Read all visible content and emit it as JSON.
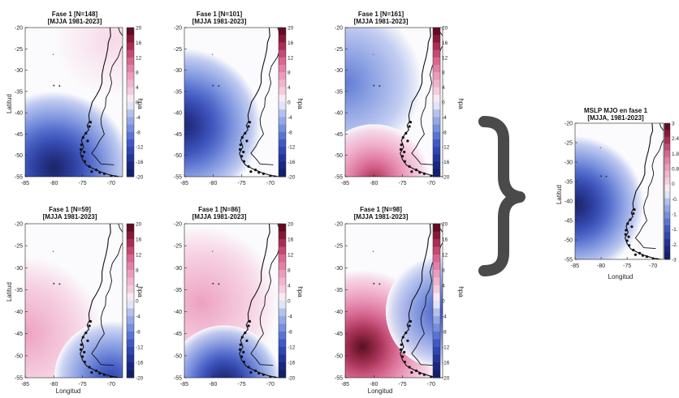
{
  "chart_data": [
    {
      "type": "heatmap",
      "title": "Fase 1 [N=148]",
      "subtitle": "[MJJA 1981-2023]",
      "xlabel": "",
      "ylabel": "Latitud",
      "colorbar_label": "hpa",
      "xlim": [
        -85,
        -68
      ],
      "ylim": [
        -55,
        -20
      ],
      "xticks": [
        "-85",
        "-80",
        "-75",
        "-70"
      ],
      "yticks": [
        "-20",
        "-25",
        "-30",
        "-35",
        "-40",
        "-45",
        "-50",
        "-55"
      ],
      "cbar_ticks": [
        "20",
        "16",
        "12",
        "8",
        "4",
        "0",
        "-4",
        "-8",
        "-12",
        "-16",
        "-20"
      ],
      "clim": [
        -20,
        20
      ],
      "anomaly_centers": [
        {
          "lon": -80,
          "lat": -53,
          "value": -20
        },
        {
          "lon": -70,
          "lat": -23,
          "value": 2
        }
      ]
    },
    {
      "type": "heatmap",
      "title": "Fase 1 [N=101]",
      "subtitle": "[MJJA 1981-2023]",
      "xlabel": "",
      "ylabel": "",
      "colorbar_label": "hpa",
      "xlim": [
        -85,
        -68
      ],
      "ylim": [
        -55,
        -20
      ],
      "xticks": [
        "-85",
        "-80",
        "-75",
        "-70"
      ],
      "yticks": [
        "-20",
        "-25",
        "-30",
        "-35",
        "-40",
        "-45",
        "-50",
        "-55"
      ],
      "cbar_ticks": [
        "20",
        "16",
        "12",
        "8",
        "4",
        "0",
        "-4",
        "-8",
        "-12",
        "-16",
        "-20"
      ],
      "clim": [
        -20,
        20
      ],
      "anomaly_centers": [
        {
          "lon": -85,
          "lat": -43,
          "value": -19
        }
      ]
    },
    {
      "type": "heatmap",
      "title": "Fase 1 [N=161]",
      "subtitle": "[MJJA 1981-2023]",
      "xlabel": "",
      "ylabel": "",
      "colorbar_label": "hpa",
      "xlim": [
        -85,
        -68
      ],
      "ylim": [
        -55,
        -20
      ],
      "xticks": [
        "-85",
        "-80",
        "-75",
        "-70"
      ],
      "yticks": [
        "-20",
        "-25",
        "-30",
        "-35",
        "-40",
        "-45",
        "-50",
        "-55"
      ],
      "cbar_ticks": [
        "20",
        "16",
        "12",
        "8",
        "4",
        "0",
        "-4",
        "-8",
        "-12",
        "-16",
        "-20"
      ],
      "clim": [
        -20,
        20
      ],
      "anomaly_centers": [
        {
          "lon": -85,
          "lat": -33,
          "value": -9
        },
        {
          "lon": -80,
          "lat": -56,
          "value": 16
        }
      ]
    },
    {
      "type": "heatmap",
      "title": "Fase 1 [N=59]",
      "subtitle": "[MJJA 1981-2023]",
      "xlabel": "",
      "ylabel": "Latitud",
      "colorbar_label": "hpa",
      "xlim": [
        -85,
        -68
      ],
      "ylim": [
        -55,
        -20
      ],
      "xticks": [
        "-85",
        "-80",
        "-75",
        "-70"
      ],
      "yticks": [
        "-20",
        "-25",
        "-30",
        "-35",
        "-40",
        "-45",
        "-50",
        "-55"
      ],
      "cbar_ticks": [
        "20",
        "16",
        "12",
        "8",
        "4",
        "0",
        "-4",
        "-8",
        "-12",
        "-16",
        "-20"
      ],
      "clim": [
        -20,
        20
      ],
      "anomaly_centers": [
        {
          "lon": -85,
          "lat": -45,
          "value": 7
        },
        {
          "lon": -70,
          "lat": -55,
          "value": -14
        }
      ]
    },
    {
      "type": "heatmap",
      "title": "Fase 1 [N=86]",
      "subtitle": "[MJJA 1981-2023]",
      "xlabel": "",
      "ylabel": "",
      "colorbar_label": "hpa",
      "xlim": [
        -85,
        -68
      ],
      "ylim": [
        -55,
        -20
      ],
      "xticks": [
        "-85",
        "-80",
        "-75",
        "-70"
      ],
      "yticks": [
        "-20",
        "-25",
        "-30",
        "-35",
        "-40",
        "-45",
        "-50",
        "-55"
      ],
      "cbar_ticks": [
        "20",
        "16",
        "12",
        "8",
        "4",
        "0",
        "-4",
        "-8",
        "-12",
        "-16",
        "-20"
      ],
      "clim": [
        -20,
        20
      ],
      "anomaly_centers": [
        {
          "lon": -82,
          "lat": -38,
          "value": 7
        },
        {
          "lon": -78,
          "lat": -56,
          "value": -20
        }
      ]
    },
    {
      "type": "heatmap",
      "title": "Fase 1 [N=98]",
      "subtitle": "[MJJA 1981-2023]",
      "xlabel": "",
      "ylabel": "",
      "colorbar_label": "hpa",
      "xlim": [
        -85,
        -68
      ],
      "ylim": [
        -55,
        -20
      ],
      "xticks": [
        "-85",
        "-80",
        "-75",
        "-70"
      ],
      "yticks": [
        "-20",
        "-25",
        "-30",
        "-35",
        "-40",
        "-45",
        "-50",
        "-55"
      ],
      "cbar_ticks": [
        "20",
        "16",
        "12",
        "8",
        "4",
        "0",
        "-4",
        "-8",
        "-12",
        "-16",
        "-20"
      ],
      "clim": [
        -20,
        20
      ],
      "anomaly_centers": [
        {
          "lon": -82,
          "lat": -48,
          "value": 20
        },
        {
          "lon": -68,
          "lat": -40,
          "value": -12
        }
      ]
    },
    {
      "type": "heatmap",
      "title": "MSLP MJO en fase 1",
      "subtitle": "[MJJA, 1981-2023]",
      "xlabel": "Longitud",
      "ylabel": "Latitud",
      "colorbar_label": "",
      "xlim": [
        -85,
        -68
      ],
      "ylim": [
        -55,
        -20
      ],
      "xticks": [
        "-85",
        "-80",
        "-75",
        "-70"
      ],
      "yticks": [
        "-20",
        "-25",
        "-30",
        "-35",
        "-40",
        "-45",
        "-50",
        "-55"
      ],
      "cbar_ticks": [
        "3",
        "2.4",
        "1.8",
        "0.8",
        "0",
        "-0.",
        "-1.",
        "-1.",
        "-2.",
        "-3"
      ],
      "clim": [
        -3,
        3
      ],
      "anomaly_centers": [
        {
          "lon": -85,
          "lat": -41,
          "value": -3
        }
      ]
    }
  ],
  "figure": {
    "xlabels": [
      "Longitud",
      "Longitud"
    ],
    "ylabels": [
      "Latitud",
      "Latitud"
    ],
    "connector": "right-brace"
  },
  "colors": {
    "min": "#101a5c",
    "mid": "#fbfbfd",
    "max": "#4d0516",
    "coast": "#111111",
    "brace": "#4a4a4a"
  }
}
